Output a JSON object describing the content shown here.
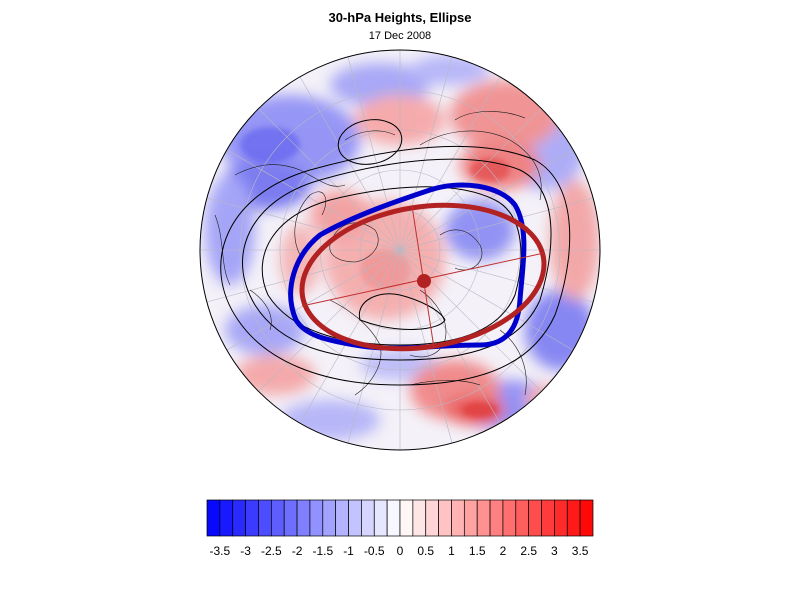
{
  "title": "30-hPa Heights, Ellipse",
  "subtitle": "17 Dec 2008",
  "projection": "north-polar-stereographic",
  "colors": {
    "negative_extreme": "#1a1aff",
    "positive_extreme": "#ff1a1a",
    "neutral": "#ffffff",
    "height_contours": "#000000",
    "vortex_edge": "#0000cc",
    "fitted_ellipse": "#b22222"
  },
  "colorbar": {
    "min": -3.75,
    "max": 3.75,
    "step": 0.25,
    "tick_labels": [
      "-3.5",
      "-3",
      "-2.5",
      "-2",
      "-1.5",
      "-1",
      "-0.5",
      "0",
      "0.5",
      "1",
      "1.5",
      "2",
      "2.5",
      "3",
      "3.5"
    ],
    "tick_values": [
      -3.5,
      -3,
      -2.5,
      -2,
      -1.5,
      -1,
      -0.5,
      0,
      0.5,
      1,
      1.5,
      2,
      2.5,
      3,
      3.5
    ]
  },
  "overlays": {
    "vortex_edge": "blue-contour",
    "ellipse": "red-ellipse",
    "ellipse_center": "red-dot",
    "axes": "major-minor-axis-lines"
  }
}
